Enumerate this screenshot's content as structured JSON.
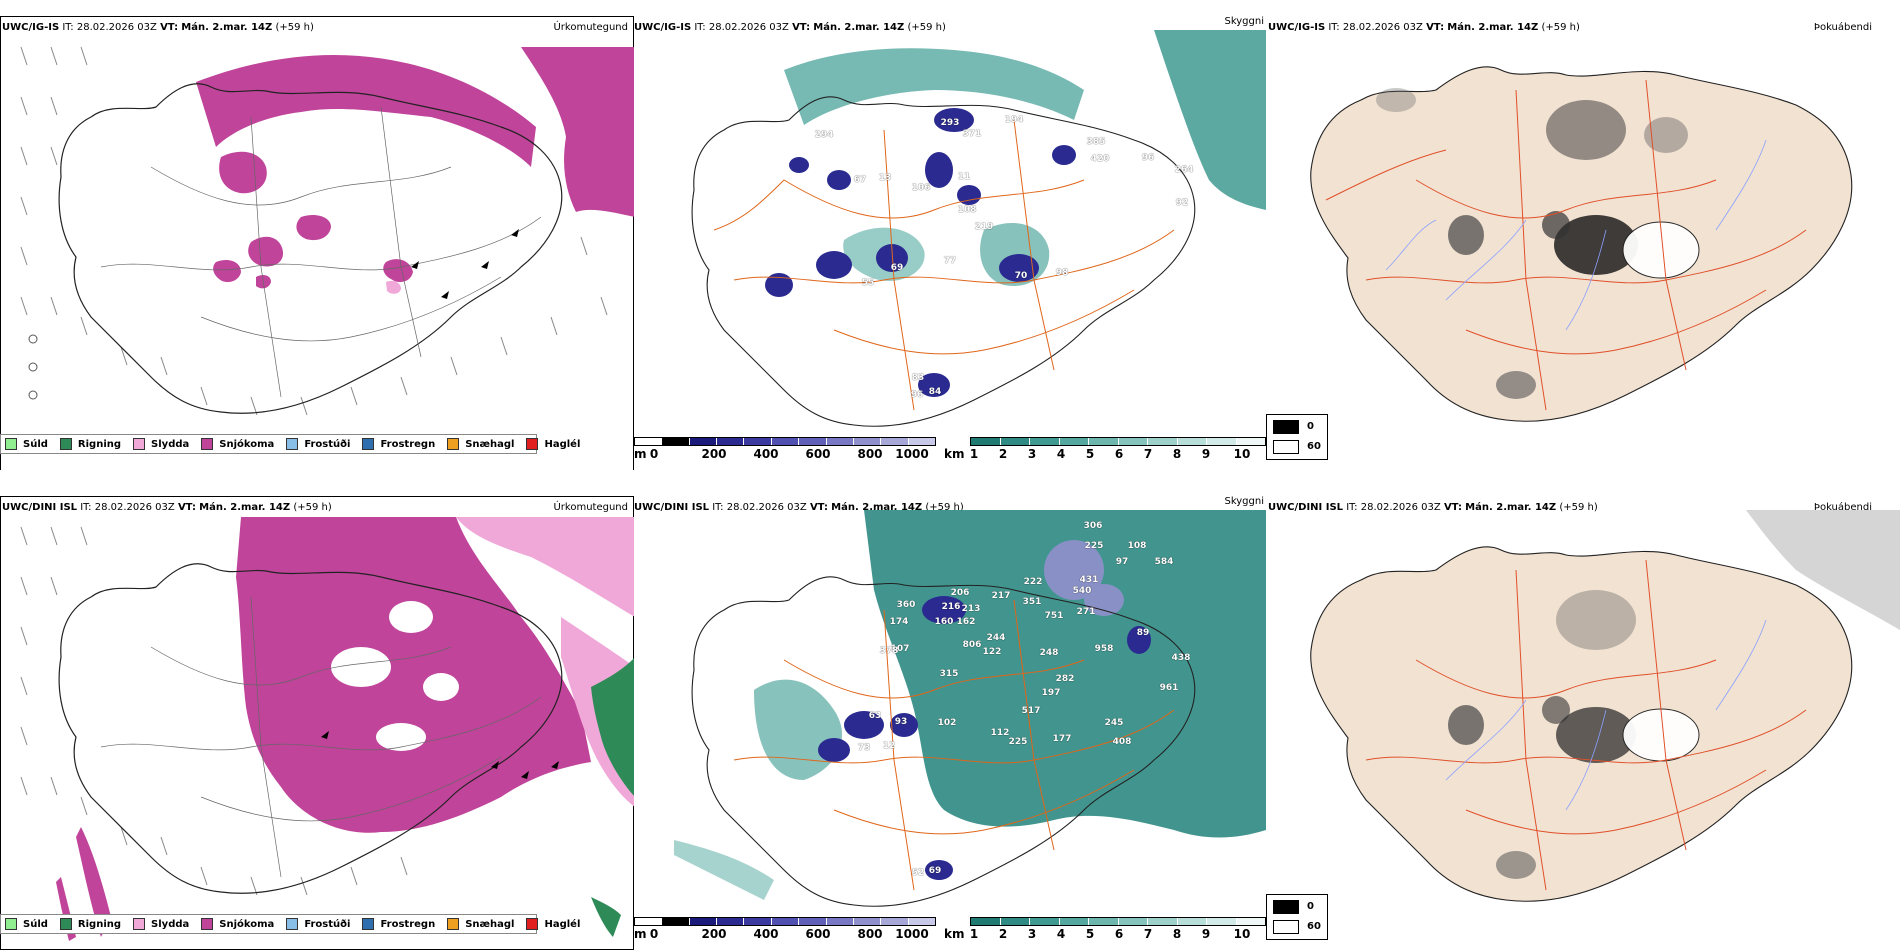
{
  "rows": [
    {
      "model": "UWC/IG-IS",
      "it_label": "IT:",
      "it_value": "28.02.2026 03Z",
      "vt_label": "VT:",
      "vt_value": "Mán. 2.mar. 14Z",
      "lead": "(+59 h)",
      "precip_title": "Úrkomutegund",
      "cloud_title": "Skyggni",
      "fog_title": "Þokuábendi",
      "cloud_base_numbers": [
        "294",
        "293",
        "371",
        "194",
        "385",
        "420",
        "264",
        "96",
        "92",
        "106",
        "108",
        "219",
        "69",
        "77",
        "70",
        "98",
        "55",
        "84",
        "96",
        "83",
        "67",
        "13",
        "11"
      ]
    },
    {
      "model": "UWC/DINI ISL",
      "it_label": "IT:",
      "it_value": "28.02.2026 03Z",
      "vt_label": "VT:",
      "vt_value": "Mán. 2.mar. 14Z",
      "lead": "(+59 h)",
      "precip_title": "Úrkomutegund",
      "cloud_title": "Skyggni",
      "fog_title": "Þokuábendi",
      "cloud_base_numbers": [
        "306",
        "225",
        "108",
        "97",
        "584",
        "360",
        "206",
        "216",
        "213",
        "217",
        "222",
        "351",
        "431",
        "540",
        "174",
        "160",
        "162",
        "751",
        "271",
        "89",
        "107",
        "806",
        "244",
        "248",
        "378",
        "122",
        "958",
        "438",
        "315",
        "282",
        "961",
        "197",
        "517",
        "93",
        "102",
        "245",
        "112",
        "225",
        "177",
        "408",
        "73",
        "12",
        "69",
        "52",
        "63"
      ]
    }
  ],
  "precip_legend": [
    {
      "label": "Súld",
      "color": "#90ee90"
    },
    {
      "label": "Rigning",
      "color": "#2e8b57"
    },
    {
      "label": "Slydda",
      "color": "#f0a8d8"
    },
    {
      "label": "Snjókoma",
      "color": "#c0449a"
    },
    {
      "label": "Frostúði",
      "color": "#87bfe8"
    },
    {
      "label": "Frostregn",
      "color": "#2f6fb0"
    },
    {
      "label": "Snæhagl",
      "color": "#f0a020"
    },
    {
      "label": "Haglél",
      "color": "#e02020"
    }
  ],
  "cloud_base_bar": {
    "unit": "m",
    "ticks": [
      "0",
      "200",
      "400",
      "600",
      "800",
      "1000"
    ],
    "colors": [
      "#ffffff",
      "#000000",
      "#1a1a7a",
      "#2a2a90",
      "#3a3aa0",
      "#5050b0",
      "#6060b8",
      "#7878c4",
      "#9090cc",
      "#a8a8d8",
      "#c8c8e8"
    ]
  },
  "visibility_bar": {
    "unit": "km",
    "ticks": [
      "1",
      "2",
      "3",
      "4",
      "5",
      "6",
      "7",
      "8",
      "9",
      "10"
    ],
    "colors": [
      "#1f7a72",
      "#2e8a82",
      "#3f9a92",
      "#55a8a0",
      "#6cb6ae",
      "#85c4bd",
      "#9fd1cb",
      "#b8ded9",
      "#d3ebe8",
      "#f0f8f7"
    ]
  },
  "fog_legend": {
    "low": "0",
    "high": "60",
    "low_color": "#000000",
    "high_color": "#ffffff"
  },
  "colors": {
    "snow": "#c0449a",
    "sleet": "#f0a8d8",
    "rain": "#2e8b57",
    "teal": "#2e8a82",
    "navy": "#2a2a90",
    "land": "#f2e2d2",
    "road": "#e0661a",
    "river": "#8aa0ff"
  }
}
